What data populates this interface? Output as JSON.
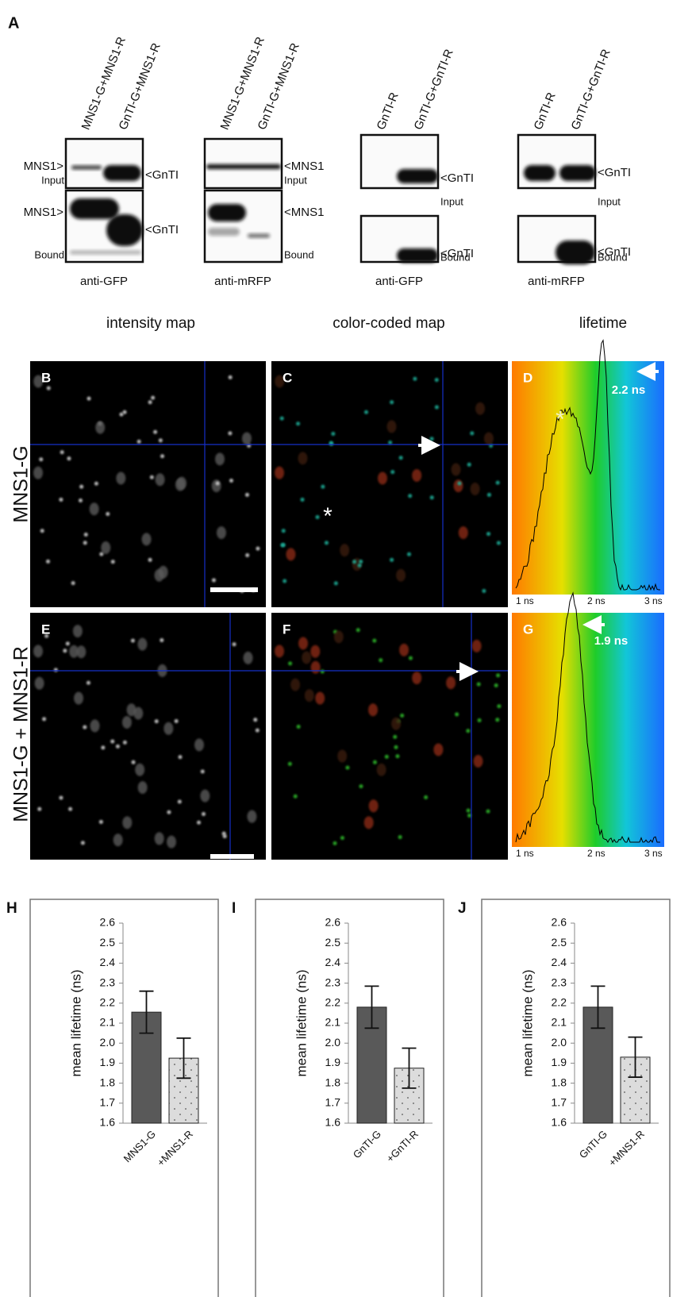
{
  "panel_a": {
    "label": "A",
    "groups": [
      {
        "lanes": [
          "MNS1-G+MNS1-R",
          "GnTI-G+MNS1-R"
        ],
        "left_labels": [
          "MNS1>",
          "MNS1>"
        ],
        "right_labels": [
          "<GnTI",
          "<GnTI"
        ],
        "corner_labels": [
          "Input",
          "Bound"
        ],
        "antibody": "anti-GFP"
      },
      {
        "lanes": [
          "MNS1-G+MNS1-R",
          "GnTI-G+MNS1-R"
        ],
        "right_labels": [
          "<MNS1",
          "<MNS1"
        ],
        "corner_labels": [
          "Input",
          "Bound"
        ],
        "antibody": "anti-mRFP"
      },
      {
        "lanes": [
          "GnTI-R",
          "GnTI-G+GnTI-R"
        ],
        "right_labels": [
          "<GnTI",
          "<GnTI"
        ],
        "corner_labels": [
          "Input",
          "Bound"
        ],
        "antibody": "anti-GFP"
      },
      {
        "lanes": [
          "GnTI-R",
          "GnTI-G+GnTI-R"
        ],
        "right_labels": [
          "<GnTI",
          "<GnTI"
        ],
        "corner_labels": [
          "Input",
          "Bound"
        ],
        "antibody": "anti-mRFP"
      }
    ]
  },
  "microscopy": {
    "column_headers": [
      "intensity map",
      "color-coded map",
      "lifetime"
    ],
    "row_labels": [
      "MNS1-G",
      "MNS1-G + MNS1-R"
    ],
    "panel_labels": [
      [
        "B",
        "C",
        "D"
      ],
      [
        "E",
        "F",
        "G"
      ]
    ],
    "lifetime_annotations": [
      "2.2 ns",
      "1.9 ns"
    ],
    "lifetime_axis": [
      "1 ns",
      "2 ns",
      "3 ns"
    ],
    "asterisk": "*"
  },
  "chart_data": [
    {
      "type": "bar",
      "label": "H",
      "ylabel": "mean lifetime (ns)",
      "categories": [
        "MNS1-G",
        "+MNS1-R"
      ],
      "values": [
        2.155,
        1.925
      ],
      "errors": [
        0.105,
        0.1
      ],
      "colors": [
        "#595959",
        "#d9d9d9"
      ],
      "ylim": [
        1.6,
        2.6
      ],
      "yticks": [
        1.6,
        1.7,
        1.8,
        1.9,
        {
          "value": 2,
          "label": "2.0"
        },
        2.1,
        2.2,
        2.3,
        2.4,
        2.5,
        2.6
      ]
    },
    {
      "type": "bar",
      "label": "I",
      "ylabel": "mean lifetime (ns)",
      "categories": [
        "GnTI-G",
        "+GnTI-R"
      ],
      "values": [
        2.18,
        1.875
      ],
      "errors": [
        0.105,
        0.1
      ],
      "colors": [
        "#595959",
        "#d9d9d9"
      ],
      "ylim": [
        1.6,
        2.6
      ],
      "yticks": [
        1.6,
        1.7,
        1.8,
        1.9,
        {
          "value": 2,
          "label": "2.0"
        },
        2.1,
        2.2,
        2.3,
        2.4,
        2.5,
        2.6
      ]
    },
    {
      "type": "bar",
      "label": "J",
      "ylabel": "mean lifetime (ns)",
      "categories": [
        "GnTI-G",
        "+MNS1-R"
      ],
      "values": [
        2.18,
        1.93
      ],
      "errors": [
        0.105,
        0.1
      ],
      "colors": [
        "#595959",
        "#d9d9d9"
      ],
      "ylim": [
        1.6,
        2.6
      ],
      "yticks": [
        1.6,
        1.7,
        1.8,
        1.9,
        {
          "value": 2,
          "label": "2.0"
        },
        2.1,
        2.2,
        2.3,
        2.4,
        2.5,
        2.6
      ]
    }
  ]
}
